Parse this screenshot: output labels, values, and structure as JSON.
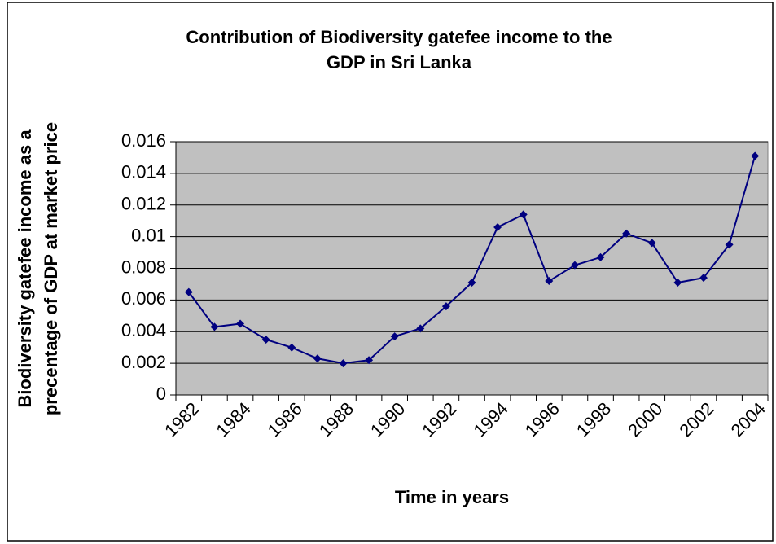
{
  "chart_data": {
    "type": "line",
    "title": [
      "Contribution of Biodiversity gatefee income to the",
      "GDP in Sri Lanka"
    ],
    "x_label": "Time in years",
    "y_label": [
      "Biodiversity gatefee income as a",
      "precentage of GDP at market price"
    ],
    "categories": [
      "1982",
      null,
      "1984",
      null,
      "1986",
      null,
      "1988",
      null,
      "1990",
      null,
      "1992",
      null,
      "1994",
      null,
      "1996",
      null,
      "1998",
      null,
      "2000",
      null,
      "2002",
      null,
      "2004"
    ],
    "series": [
      {
        "color": "#000080",
        "values": [
          0.0065,
          0.0043,
          0.0045,
          0.0035,
          0.003,
          0.0023,
          0.002,
          0.0022,
          0.0037,
          0.0042,
          0.0056,
          0.0071,
          0.0106,
          0.0114,
          0.0072,
          0.0082,
          0.0087,
          0.0102,
          0.0096,
          0.0071,
          0.0074,
          0.0095,
          0.0151
        ]
      }
    ],
    "ylim": [
      0,
      0.016
    ],
    "yticks": [
      0,
      0.002,
      0.004,
      0.006,
      0.008,
      0.01,
      0.012,
      0.014,
      0.016
    ],
    "grid": true,
    "plot_background": "#c0c0c0"
  }
}
